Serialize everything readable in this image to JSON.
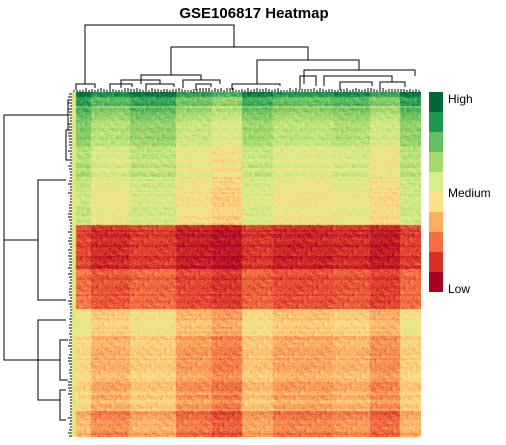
{
  "chart_data": {
    "type": "heatmap",
    "title": "GSE106817 Heatmap",
    "xlabel": "",
    "ylabel": "",
    "grid": false,
    "legend": {
      "placement": "right",
      "labels": [
        "High",
        "Medium",
        "Low"
      ],
      "colors": [
        "#006837",
        "#1A9850",
        "#66BD63",
        "#A6D96A",
        "#D9EF8B",
        "#FEE08B",
        "#FDAE61",
        "#F46D43",
        "#D73027",
        "#A50026"
      ]
    },
    "row_dendrogram": true,
    "column_dendrogram": true,
    "row_blocks": [
      {
        "level": 0.95,
        "rows": 2
      },
      {
        "level": 0.84,
        "rows": 4
      },
      {
        "level": 0.74,
        "rows": 6
      },
      {
        "level": 0.66,
        "rows": 12
      },
      {
        "level": 0.58,
        "rows": 14
      },
      {
        "level": 0.53,
        "rows": 22
      },
      {
        "level": 0.1,
        "rows": 20
      },
      {
        "level": 0.18,
        "rows": 18
      },
      {
        "level": 0.44,
        "rows": 12
      },
      {
        "level": 0.38,
        "rows": 34
      },
      {
        "level": 0.3,
        "rows": 12
      }
    ],
    "column_groups": [
      {
        "shift": 0.05,
        "cols": 12
      },
      {
        "shift": -0.04,
        "cols": 26
      },
      {
        "shift": 0.02,
        "cols": 30
      },
      {
        "shift": -0.08,
        "cols": 24
      },
      {
        "shift": -0.13,
        "cols": 20
      },
      {
        "shift": 0.0,
        "cols": 20
      },
      {
        "shift": -0.06,
        "cols": 40
      },
      {
        "shift": -0.03,
        "cols": 24
      },
      {
        "shift": -0.1,
        "cols": 20
      },
      {
        "shift": 0.03,
        "cols": 14
      }
    ]
  }
}
